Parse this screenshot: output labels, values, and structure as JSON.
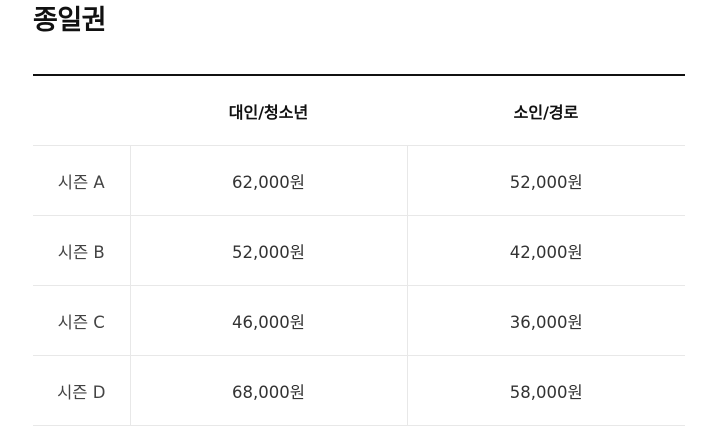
{
  "title": "종일권",
  "table": {
    "headers": [
      "",
      "대인/청소년",
      "소인/경로"
    ],
    "rows": [
      {
        "season": "시즌 A",
        "adult_youth": "62,000원",
        "child_senior": "52,000원"
      },
      {
        "season": "시즌 B",
        "adult_youth": "52,000원",
        "child_senior": "42,000원"
      },
      {
        "season": "시즌 C",
        "adult_youth": "46,000원",
        "child_senior": "36,000원"
      },
      {
        "season": "시즌 D",
        "adult_youth": "68,000원",
        "child_senior": "58,000원"
      }
    ]
  },
  "colors": {
    "heading": "#111111",
    "top_rule": "#111111",
    "row_divider": "#e8e8e8",
    "body_text": "#333333"
  }
}
